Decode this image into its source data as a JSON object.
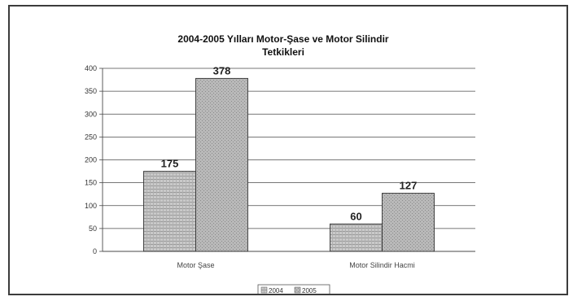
{
  "chart_data": {
    "type": "bar",
    "title_lines": [
      "2004-2005 Yılları Motor-Şase ve Motor Silindir",
      "Tetkikleri"
    ],
    "categories": [
      "Motor Şase",
      "Motor Silindir Hacmi"
    ],
    "series": [
      {
        "name": "2004",
        "values": [
          175,
          60
        ],
        "color": "#bdbdbd"
      },
      {
        "name": "2005",
        "values": [
          378,
          127
        ],
        "color": "#a8a8a8"
      }
    ],
    "ylim": [
      0,
      400
    ],
    "yticks": [
      0,
      50,
      100,
      150,
      200,
      250,
      300,
      350,
      400
    ],
    "grid": true,
    "legend_position": "bottom",
    "xlabel": "",
    "ylabel": ""
  }
}
